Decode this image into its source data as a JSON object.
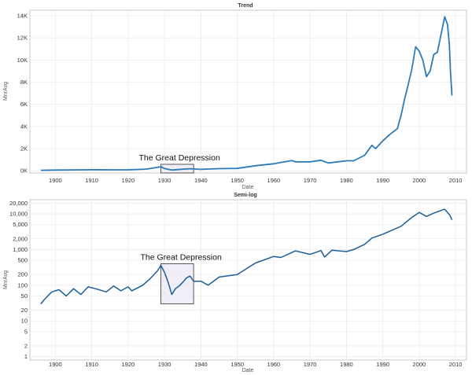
{
  "chart_data": [
    {
      "type": "line",
      "title": "Trend",
      "xlabel": "Date",
      "ylabel": "MnrAvg",
      "xlim": [
        1893,
        2013
      ],
      "ylim": [
        -200,
        14500
      ],
      "y_scale": "linear",
      "grid": true,
      "xticks": [
        1900,
        1910,
        1920,
        1930,
        1940,
        1950,
        1960,
        1970,
        1980,
        1990,
        2000,
        2010
      ],
      "xtick_labels": [
        "1900",
        "1910",
        "1920",
        "1930",
        "1940",
        "1950",
        "1960",
        "1970",
        "1980",
        "1990",
        "2000",
        "2010"
      ],
      "yticks": [
        0,
        2000,
        4000,
        6000,
        8000,
        10000,
        12000,
        14000
      ],
      "ytick_labels": [
        "0K",
        "2K",
        "4K",
        "6K",
        "8K",
        "10K",
        "12K",
        "14K"
      ],
      "annotation": {
        "label": "The Great Depression",
        "x_range": [
          1929,
          1938
        ]
      },
      "series": [
        {
          "color": "#2b7bba",
          "x": [
            1896,
            1900,
            1905,
            1910,
            1915,
            1920,
            1925,
            1929,
            1930,
            1932,
            1935,
            1937,
            1940,
            1945,
            1950,
            1955,
            1960,
            1965,
            1966,
            1970,
            1973,
            1975,
            1980,
            1982,
            1985,
            1987,
            1988,
            1990,
            1992,
            1994,
            1995,
            1996,
            1997,
            1998,
            1999,
            2000,
            2001,
            2002,
            2003,
            2004,
            2005,
            2006,
            2007,
            2007.8,
            2008.3,
            2008.6,
            2009
          ],
          "y": [
            40,
            65,
            80,
            90,
            85,
            85,
            150,
            360,
            200,
            60,
            140,
            180,
            130,
            190,
            210,
            450,
            630,
            920,
            800,
            800,
            950,
            700,
            900,
            900,
            1400,
            2300,
            2000,
            2700,
            3300,
            3800,
            5000,
            6500,
            7800,
            9200,
            11200,
            10800,
            10000,
            8500,
            9000,
            10500,
            10700,
            12300,
            13900,
            13200,
            11300,
            9000,
            6800
          ]
        }
      ]
    },
    {
      "type": "line",
      "title": "Semi-log",
      "xlabel": "Date",
      "ylabel": "MnrAvg",
      "xlim": [
        1893,
        2013
      ],
      "ylim": [
        0.8,
        25000
      ],
      "y_scale": "log",
      "grid": true,
      "xticks": [
        1900,
        1910,
        1920,
        1930,
        1940,
        1950,
        1960,
        1970,
        1980,
        1990,
        2000,
        2010
      ],
      "xtick_labels": [
        "1900",
        "1910",
        "1920",
        "1930",
        "1940",
        "1950",
        "1960",
        "1970",
        "1980",
        "1990",
        "2000",
        "2010"
      ],
      "yticks": [
        1,
        2,
        5,
        10,
        20,
        50,
        100,
        200,
        500,
        1000,
        2000,
        5000,
        10000,
        20000
      ],
      "ytick_labels": [
        "1",
        "2",
        "5",
        "10",
        "20",
        "50",
        "100",
        "200",
        "500",
        "1,000",
        "2,000",
        "5,000",
        "10,000",
        "20,000"
      ],
      "annotation": {
        "label": "The Great Depression",
        "x_range": [
          1929,
          1938
        ]
      },
      "series": [
        {
          "color": "#1b5e98",
          "x": [
            1896,
            1897,
            1899,
            1901,
            1903,
            1905,
            1907,
            1909,
            1911,
            1914,
            1916,
            1918,
            1920,
            1921,
            1924,
            1926,
            1928,
            1929,
            1930,
            1931,
            1932,
            1933,
            1934,
            1935,
            1936,
            1937,
            1938,
            1940,
            1942,
            1945,
            1950,
            1955,
            1960,
            1962,
            1966,
            1970,
            1973,
            1974,
            1976,
            1980,
            1982,
            1985,
            1987,
            1990,
            1995,
            1998,
            2000,
            2002,
            2004,
            2007,
            2008.5,
            2009
          ],
          "y": [
            30,
            40,
            65,
            75,
            50,
            80,
            55,
            90,
            80,
            65,
            95,
            70,
            90,
            70,
            100,
            150,
            250,
            360,
            230,
            120,
            55,
            80,
            95,
            120,
            160,
            180,
            130,
            130,
            100,
            170,
            200,
            420,
            640,
            600,
            920,
            730,
            940,
            620,
            960,
            880,
            1000,
            1400,
            2100,
            2700,
            4500,
            8000,
            11000,
            8500,
            10500,
            13500,
            9000,
            6800
          ]
        }
      ]
    }
  ]
}
